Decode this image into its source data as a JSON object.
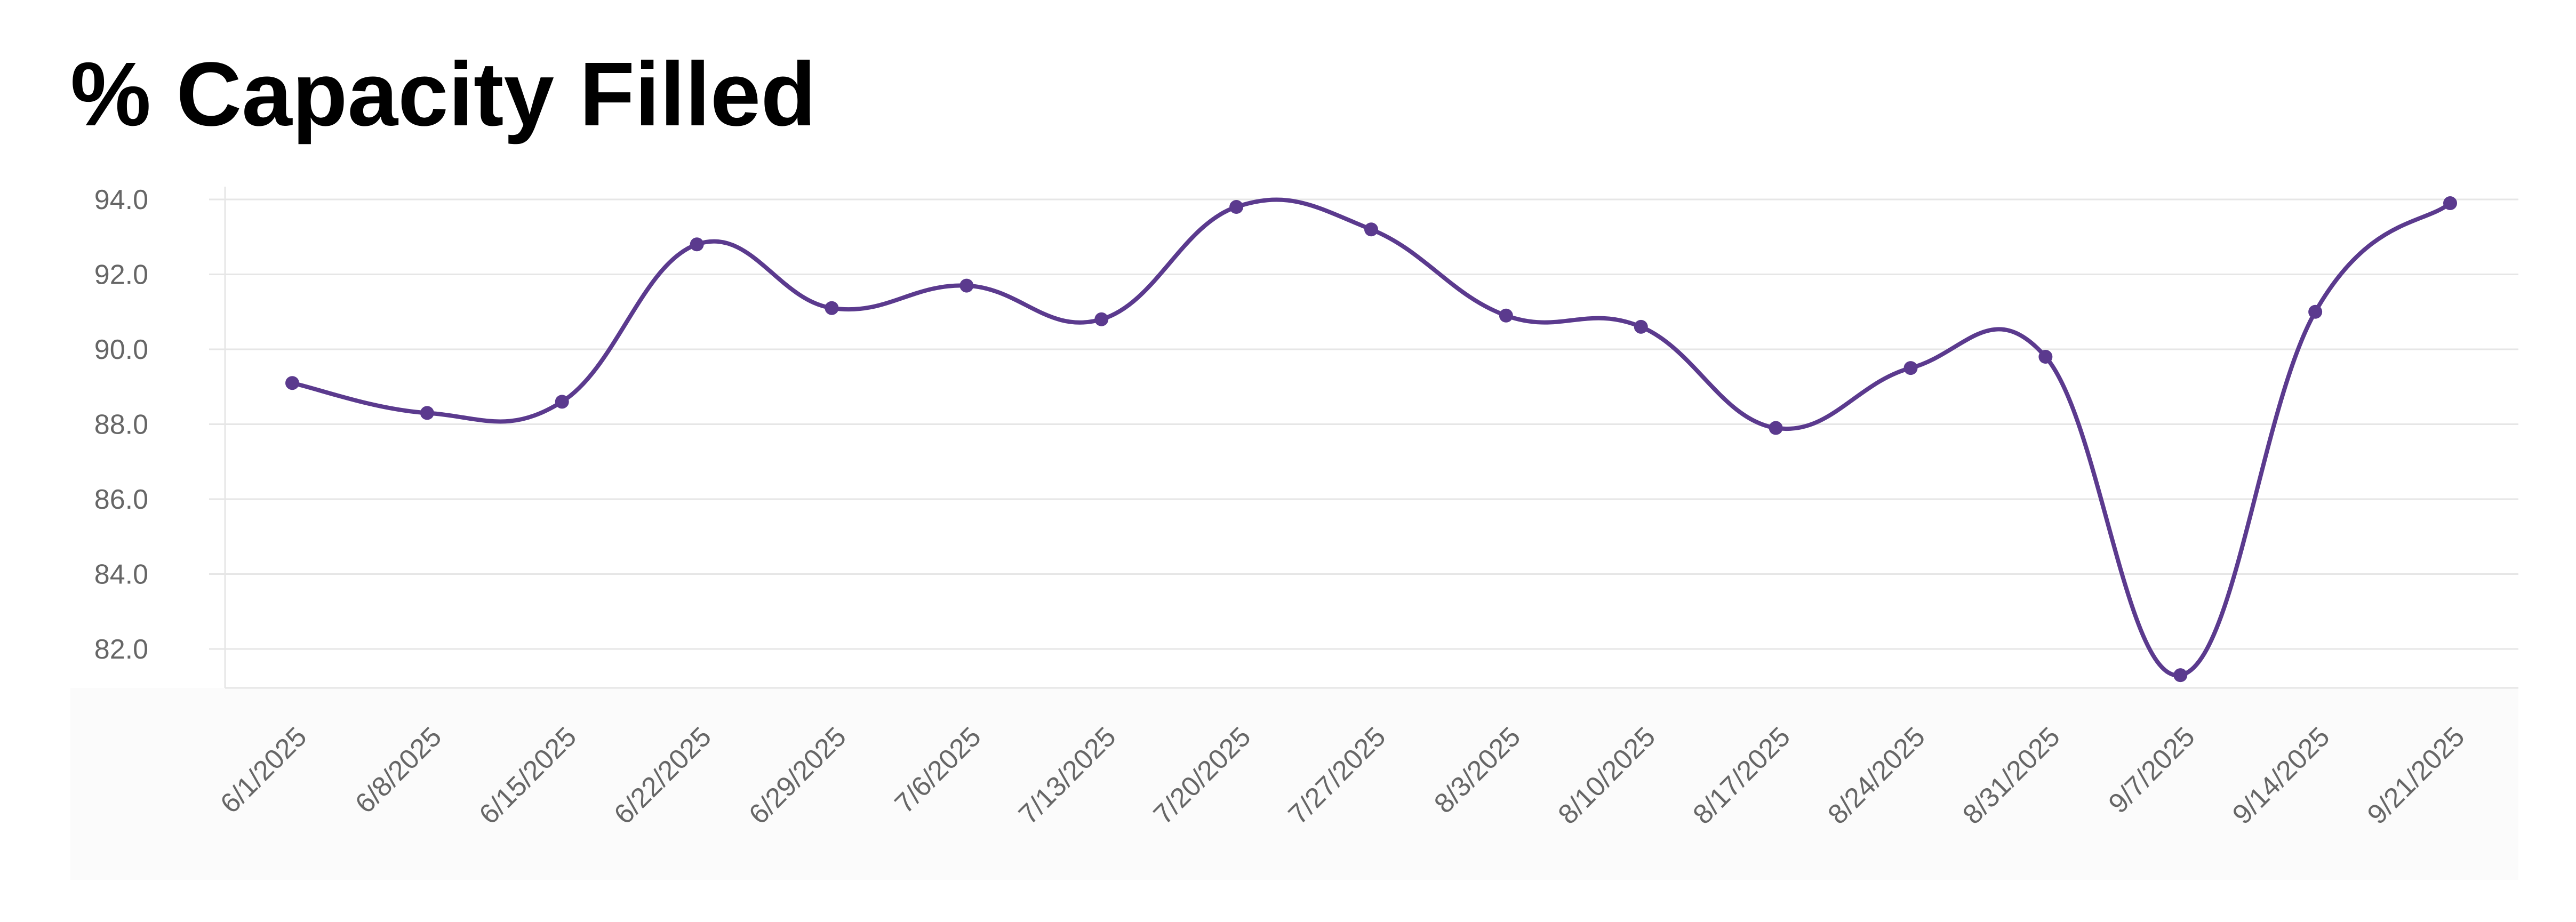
{
  "chart_data": {
    "type": "line",
    "title": "% Capacity Filled",
    "xlabel": "",
    "ylabel": "",
    "categories": [
      "6/1/2025",
      "6/8/2025",
      "6/15/2025",
      "6/22/2025",
      "6/29/2025",
      "7/6/2025",
      "7/13/2025",
      "7/20/2025",
      "7/27/2025",
      "8/3/2025",
      "8/10/2025",
      "8/17/2025",
      "8/24/2025",
      "8/31/2025",
      "9/7/2025",
      "9/14/2025",
      "9/21/2025"
    ],
    "values": [
      89.1,
      88.3,
      88.6,
      92.8,
      91.1,
      91.7,
      90.8,
      93.8,
      93.2,
      90.9,
      90.6,
      87.9,
      89.5,
      89.8,
      81.3,
      91.0,
      93.9
    ],
    "yticks": [
      "82.0",
      "84.0",
      "86.0",
      "88.0",
      "90.0",
      "92.0",
      "94.0"
    ],
    "ylim": [
      81,
      94
    ],
    "grid": true,
    "legend": "none",
    "line_color": "#5b3a8e",
    "grid_color": "#e6e6e6"
  }
}
